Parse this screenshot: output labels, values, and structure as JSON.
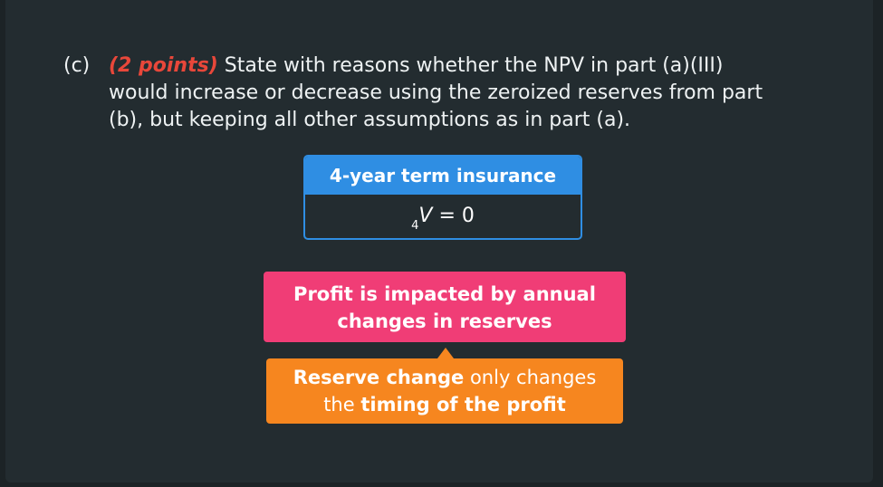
{
  "question": {
    "label": "(c)",
    "points": "(2 points)",
    "line1_text": " State with reasons whether the NPV in part (a)(III)",
    "line2": "would increase or decrease using the zeroized reserves from part",
    "line3": "(b), but keeping all other assumptions as in part (a)."
  },
  "insurance": {
    "header": "4-year term insurance",
    "subscript": "4",
    "variable": "V",
    "equals": " = 0"
  },
  "profit_box": {
    "line1": "Profit is impacted by annual",
    "line2": "changes in reserves"
  },
  "reserve_box": {
    "bold1": "Reserve change",
    "normal1": " only changes",
    "normal2": "the ",
    "bold2": "timing of the profit"
  },
  "colors": {
    "background": "#232c30",
    "points_red": "#e8473a",
    "blue": "#2f8ee3",
    "pink": "#f03d76",
    "orange": "#f6861f"
  }
}
